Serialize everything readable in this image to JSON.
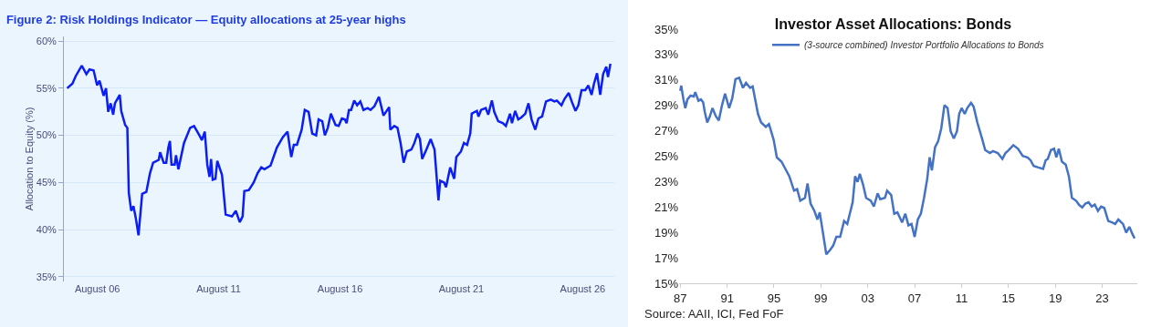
{
  "chart_data": [
    {
      "type": "line",
      "title": "Figure 2: Risk Holdings Indicator — Equity allocations at 25-year highs",
      "ylabel": "Allocation to Equity (%)",
      "grid": "y",
      "legend": false,
      "xlim": [
        "2005-03-15",
        "2027-11-20"
      ],
      "xticks": [
        {
          "value": "2006-08-01",
          "label": "August 06"
        },
        {
          "value": "2011-08-01",
          "label": "August 11"
        },
        {
          "value": "2016-08-01",
          "label": "August 16"
        },
        {
          "value": "2021-08-01",
          "label": "August 21"
        },
        {
          "value": "2026-08-01",
          "label": "August 26"
        }
      ],
      "ylim": [
        34.5,
        60.5
      ],
      "yticks": [
        {
          "value": 35,
          "label": "35%"
        },
        {
          "value": 40,
          "label": "40%"
        },
        {
          "value": 45,
          "label": "45%"
        },
        {
          "value": 50,
          "label": "50%"
        },
        {
          "value": 55,
          "label": "55%"
        },
        {
          "value": 60,
          "label": "60%"
        }
      ],
      "series": [
        {
          "color": "#0a1ef5",
          "x": [
            "2005-05-03",
            "2005-07-22",
            "2005-09-09",
            "2005-12-09",
            "2006-02-17",
            "2006-04-04",
            "2006-06-05",
            "2006-07-28",
            "2006-09-02",
            "2006-11-03",
            "2006-12-09",
            "2007-01-11",
            "2007-02-17",
            "2007-03-27",
            "2007-04-22",
            "2007-07-04",
            "2007-07-26",
            "2007-09-23",
            "2007-10-26",
            "2007-11-17",
            "2007-12-23",
            "2008-01-26",
            "2008-03-02",
            "2008-04-11",
            "2008-06-05",
            "2008-08-07",
            "2008-10-01",
            "2008-11-17",
            "2009-02-10",
            "2009-03-02",
            "2009-04-26",
            "2009-06-02",
            "2009-07-04",
            "2009-07-28",
            "2009-08-21",
            "2009-10-08",
            "2009-10-28",
            "2009-12-02",
            "2010-02-25",
            "2010-05-28",
            "2010-07-26",
            "2010-10-15",
            "2010-11-21",
            "2011-01-04",
            "2011-02-10",
            "2011-03-16",
            "2011-04-08",
            "2011-05-03",
            "2011-06-13",
            "2011-07-11",
            "2011-09-20",
            "2011-11-14",
            "2012-02-17",
            "2012-04-15",
            "2012-06-13",
            "2012-07-26",
            "2012-08-21",
            "2012-10-28",
            "2013-01-08",
            "2013-03-09",
            "2013-05-03",
            "2013-06-20",
            "2013-09-20",
            "2013-12-23",
            "2014-03-23",
            "2014-06-02",
            "2014-07-28",
            "2014-09-05",
            "2014-10-22",
            "2015-01-01",
            "2015-02-17",
            "2015-04-15",
            "2015-06-09",
            "2015-08-07",
            "2015-09-13",
            "2015-11-07",
            "2015-12-16",
            "2016-01-29",
            "2016-03-16",
            "2016-05-25",
            "2016-07-11",
            "2016-08-28",
            "2016-10-11",
            "2016-11-07",
            "2016-12-13",
            "2017-01-15",
            "2017-03-02",
            "2017-04-15",
            "2017-06-02",
            "2017-07-19",
            "2017-09-20",
            "2017-11-03",
            "2018-01-01",
            "2018-03-09",
            "2018-05-17",
            "2018-08-10",
            "2018-08-28",
            "2018-10-26",
            "2018-12-13",
            "2019-01-29",
            "2019-03-16",
            "2019-05-03",
            "2019-07-11",
            "2019-08-25",
            "2019-10-11",
            "2019-11-17",
            "2019-12-20",
            "2020-02-21",
            "2020-04-26",
            "2020-06-23",
            "2020-08-21",
            "2020-09-16",
            "2020-11-14",
            "2020-12-13",
            "2021-02-14",
            "2021-04-15",
            "2021-05-17",
            "2021-07-26",
            "2021-09-09",
            "2021-10-26",
            "2021-12-13",
            "2022-01-04",
            "2022-02-21",
            "2022-03-23",
            "2022-04-15",
            "2022-05-25",
            "2022-08-03",
            "2022-09-09",
            "2022-11-03",
            "2022-12-09",
            "2023-02-07",
            "2023-04-15",
            "2023-06-02",
            "2023-08-03",
            "2023-09-02",
            "2023-10-19",
            "2023-12-05",
            "2024-01-19",
            "2024-03-20",
            "2024-05-07",
            "2024-06-23",
            "2024-08-17",
            "2024-10-04",
            "2024-11-28",
            "2025-01-26",
            "2025-04-08",
            "2025-06-02",
            "2025-07-08",
            "2025-09-16",
            "2025-11-03",
            "2026-01-04",
            "2026-02-17",
            "2026-04-15",
            "2026-05-28",
            "2026-07-15",
            "2026-09-09",
            "2026-10-26",
            "2026-12-13",
            "2027-01-19",
            "2027-03-05",
            "2027-04-22",
            "2027-06-05",
            "2027-07-22",
            "2027-08-17",
            "2027-09-23"
          ],
          "values": [
            55.0,
            55.5,
            56.3,
            57.4,
            56.5,
            57.0,
            56.9,
            55.3,
            55.8,
            54.2,
            55.0,
            52.5,
            53.4,
            52.2,
            53.4,
            54.3,
            52.6,
            51.1,
            50.8,
            43.9,
            42.0,
            42.5,
            41.2,
            39.4,
            43.8,
            44.0,
            46.0,
            47.1,
            47.4,
            48.2,
            47.1,
            47.1,
            48.7,
            49.4,
            46.9,
            46.9,
            47.9,
            46.4,
            49.2,
            50.8,
            51.0,
            50.0,
            49.5,
            50.4,
            46.9,
            45.6,
            47.5,
            45.3,
            45.4,
            47.3,
            45.8,
            41.6,
            41.4,
            42.0,
            40.8,
            41.4,
            44.1,
            44.2,
            45.0,
            46.0,
            46.6,
            46.4,
            46.8,
            48.7,
            49.8,
            50.4,
            47.7,
            49.0,
            49.0,
            50.6,
            52.7,
            52.5,
            50.2,
            50.0,
            51.7,
            51.5,
            50.0,
            50.8,
            52.3,
            51.1,
            51.0,
            51.8,
            51.7,
            51.3,
            52.7,
            52.7,
            53.7,
            53.2,
            53.6,
            52.7,
            52.9,
            52.7,
            53.1,
            54.1,
            52.1,
            53.0,
            50.6,
            51.0,
            50.8,
            49.2,
            47.1,
            48.3,
            48.5,
            49.2,
            50.2,
            49.6,
            47.5,
            48.5,
            49.6,
            48.5,
            43.1,
            45.2,
            45.0,
            44.5,
            46.6,
            45.4,
            47.7,
            48.3,
            49.2,
            49.0,
            50.2,
            52.3,
            52.5,
            52.6,
            52.0,
            52.7,
            52.9,
            52.2,
            53.7,
            52.5,
            51.5,
            51.3,
            51.0,
            52.3,
            51.3,
            52.6,
            51.7,
            51.9,
            52.3,
            53.4,
            51.7,
            50.6,
            51.8,
            52.0,
            53.6,
            53.8,
            53.6,
            53.7,
            53.2,
            53.9,
            54.5,
            53.6,
            52.6,
            53.2,
            54.8,
            54.8,
            55.3,
            54.3,
            55.5,
            56.6,
            54.3,
            56.5,
            57.3,
            56.2,
            57.6
          ]
        }
      ]
    },
    {
      "type": "line",
      "title": "Investor Asset Allocations: Bonds",
      "legend": "top",
      "annotations": [
        "Source: AAII, ICI, Fed FoF"
      ],
      "xlim": [
        1986.9,
        2026.0
      ],
      "xticks": [
        {
          "value": 1987,
          "label": "87"
        },
        {
          "value": 1991,
          "label": "91"
        },
        {
          "value": 1995,
          "label": "95"
        },
        {
          "value": 1999,
          "label": "99"
        },
        {
          "value": 2003,
          "label": "03"
        },
        {
          "value": 2007,
          "label": "07"
        },
        {
          "value": 2011,
          "label": "11"
        },
        {
          "value": 2015,
          "label": "15"
        },
        {
          "value": 2019,
          "label": "19"
        },
        {
          "value": 2023,
          "label": "23"
        }
      ],
      "ylim": [
        15,
        35
      ],
      "yticks": [
        {
          "value": 15,
          "label": "15%"
        },
        {
          "value": 17,
          "label": "17%"
        },
        {
          "value": 19,
          "label": "19%"
        },
        {
          "value": 21,
          "label": "21%"
        },
        {
          "value": 23,
          "label": "23%"
        },
        {
          "value": 25,
          "label": "25%"
        },
        {
          "value": 27,
          "label": "27%"
        },
        {
          "value": 29,
          "label": "29%"
        },
        {
          "value": 31,
          "label": "31%"
        },
        {
          "value": 33,
          "label": "33%"
        },
        {
          "value": 35,
          "label": "35%"
        }
      ],
      "series": [
        {
          "name": "(3-source combined) Investor Portfolio Allocations to Bonds",
          "color": "#4472c4",
          "x": [
            1987.0,
            1987.08,
            1987.27,
            1987.43,
            1987.61,
            1987.88,
            1988.15,
            1988.28,
            1988.55,
            1988.76,
            1988.95,
            1989.09,
            1989.3,
            1989.51,
            1989.75,
            1990.02,
            1990.29,
            1990.56,
            1990.82,
            1991.17,
            1991.44,
            1991.71,
            1992.03,
            1992.35,
            1992.61,
            1992.96,
            1993.18,
            1993.63,
            1993.9,
            1994.3,
            1994.57,
            1994.97,
            1995.24,
            1995.64,
            1995.9,
            1996.3,
            1996.71,
            1996.97,
            1997.24,
            1997.64,
            1997.86,
            1998.12,
            1998.44,
            1998.71,
            1998.9,
            1999.25,
            1999.46,
            1999.78,
            2000.05,
            2000.32,
            2000.64,
            2000.98,
            2001.25,
            2001.71,
            2001.92,
            2002.13,
            2002.32,
            2002.59,
            2002.86,
            2003.26,
            2003.52,
            2003.84,
            2004.06,
            2004.46,
            2004.65,
            2005.0,
            2005.26,
            2005.53,
            2005.93,
            2006.2,
            2006.47,
            2006.73,
            2007.0,
            2007.27,
            2007.53,
            2007.8,
            2008.07,
            2008.28,
            2008.47,
            2008.74,
            2009.0,
            2009.27,
            2009.54,
            2009.81,
            2010.07,
            2010.34,
            2010.61,
            2010.8,
            2011.01,
            2011.28,
            2011.49,
            2011.81,
            2012.03,
            2012.35,
            2012.75,
            2013.02,
            2013.42,
            2013.68,
            2014.09,
            2014.49,
            2014.75,
            2015.02,
            2015.42,
            2015.82,
            2016.22,
            2016.63,
            2016.89,
            2017.16,
            2017.56,
            2017.96,
            2018.18,
            2018.36,
            2018.63,
            2018.9,
            2019.09,
            2019.3,
            2019.57,
            2019.89,
            2020.16,
            2020.42,
            2020.77,
            2021.04,
            2021.3,
            2021.57,
            2021.84,
            2022.11,
            2022.37,
            2022.64,
            2022.91,
            2023.18,
            2023.52,
            2023.84,
            2024.11,
            2024.38,
            2024.78,
            2025.05,
            2025.32,
            2025.58,
            2025.77
          ],
          "values": [
            30.15,
            30.56,
            29.47,
            28.79,
            29.47,
            29.77,
            29.7,
            30.04,
            29.36,
            29.47,
            29.24,
            28.49,
            27.65,
            28.1,
            28.79,
            28.17,
            27.81,
            29.01,
            29.92,
            28.79,
            29.58,
            31.06,
            31.18,
            30.38,
            30.77,
            30.38,
            30.49,
            28.33,
            27.65,
            27.31,
            27.53,
            26.28,
            24.91,
            24.57,
            24.12,
            23.43,
            22.29,
            22.41,
            21.5,
            21.72,
            22.86,
            21.27,
            20.7,
            20.02,
            20.58,
            18.53,
            17.28,
            17.62,
            17.97,
            18.65,
            18.65,
            19.9,
            19.67,
            21.38,
            23.43,
            22.98,
            23.61,
            22.79,
            21.72,
            21.5,
            21.04,
            22.07,
            21.61,
            21.72,
            22.29,
            21.95,
            20.47,
            20.58,
            19.79,
            20.47,
            19.56,
            19.67,
            18.65,
            20.02,
            20.47,
            21.72,
            23.2,
            24.91,
            23.88,
            25.71,
            26.17,
            27.19,
            29.01,
            28.79,
            26.96,
            26.39,
            26.96,
            28.33,
            28.79,
            28.33,
            28.79,
            29.2,
            28.9,
            27.65,
            26.39,
            25.48,
            25.25,
            25.4,
            25.25,
            24.79,
            25.25,
            25.48,
            25.87,
            25.59,
            25.02,
            24.91,
            24.68,
            24.23,
            24.11,
            24.0,
            24.68,
            24.79,
            25.48,
            25.59,
            24.91,
            25.59,
            24.57,
            24.34,
            23.43,
            21.72,
            21.5,
            21.16,
            20.97,
            21.27,
            21.38,
            21.04,
            21.2,
            20.7,
            21.04,
            20.93,
            19.9,
            19.79,
            19.67,
            20.02,
            19.67,
            18.99,
            19.44,
            18.88,
            18.53
          ]
        }
      ]
    }
  ]
}
